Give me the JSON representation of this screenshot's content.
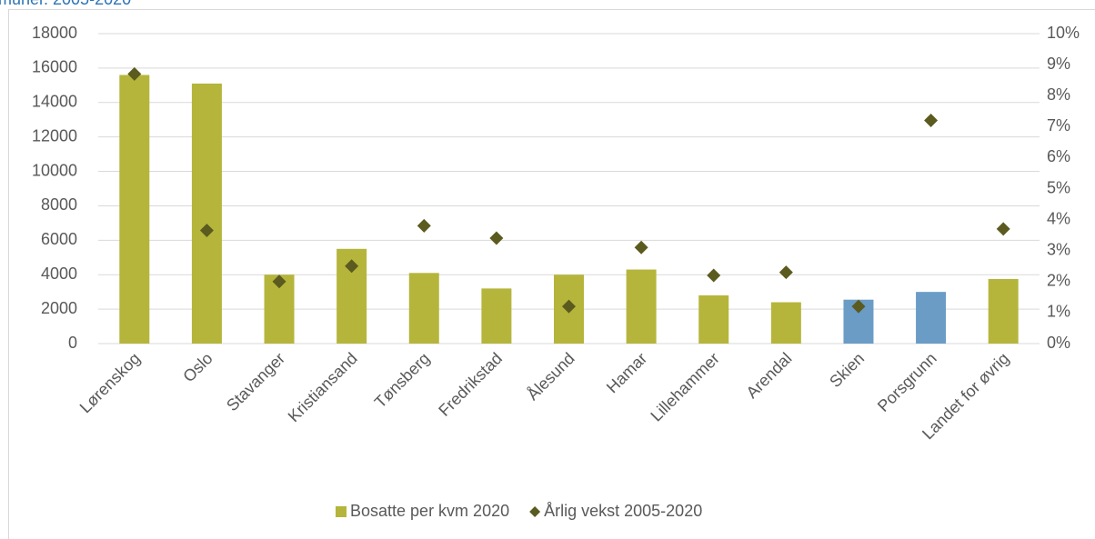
{
  "chart_data": {
    "type": "bar_scatter",
    "title": "muner. 2005-2020",
    "categories": [
      "Lørenskog",
      "Oslo",
      "Stavanger",
      "Kristiansand",
      "Tønsberg",
      "Fredrikstad",
      "Ålesund",
      "Hamar",
      "Lillehammer",
      "Arendal",
      "Skien",
      "Porsgrunn",
      "Landet for øvrig"
    ],
    "series": [
      {
        "name": "Bosatte per kvm 2020",
        "type": "bar",
        "color": "#b5b53c",
        "colors": [
          "#b5b53c",
          "#b5b53c",
          "#b5b53c",
          "#b5b53c",
          "#b5b53c",
          "#b5b53c",
          "#b5b53c",
          "#b5b53c",
          "#b5b53c",
          "#b5b53c",
          "#6a9cc6",
          "#6a9cc6",
          "#b5b53c"
        ],
        "values": [
          15600,
          15100,
          4000,
          5500,
          4100,
          3200,
          4000,
          4300,
          2800,
          2400,
          2550,
          3000,
          3750
        ]
      },
      {
        "name": "Årlig vekst 2005-2020",
        "type": "scatter",
        "axis": "y2",
        "color": "#5b5b1f",
        "values": [
          8.7,
          3.65,
          2.0,
          2.5,
          3.8,
          3.4,
          1.2,
          3.1,
          2.2,
          2.3,
          1.2,
          7.2,
          3.7
        ]
      }
    ],
    "ylim": [
      0,
      18000
    ],
    "yticks": [
      0,
      2000,
      4000,
      6000,
      8000,
      10000,
      12000,
      14000,
      16000,
      18000
    ],
    "y2lim": [
      0,
      10
    ],
    "y2ticks": [
      {
        "value": 0,
        "label": "0%"
      },
      {
        "value": 1,
        "label": "1%"
      },
      {
        "value": 2,
        "label": "2%"
      },
      {
        "value": 3,
        "label": "3%"
      },
      {
        "value": 4,
        "label": "4%"
      },
      {
        "value": 5,
        "label": "5%"
      },
      {
        "value": 6,
        "label": "6%"
      },
      {
        "value": 7,
        "label": "7%"
      },
      {
        "value": 8,
        "label": "8%"
      },
      {
        "value": 9,
        "label": "9%"
      },
      {
        "value": 10,
        "label": "10%"
      }
    ],
    "grid": true,
    "legend": "bottom"
  }
}
